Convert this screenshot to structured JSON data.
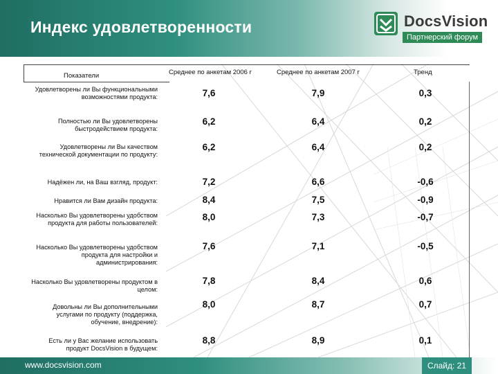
{
  "slide": {
    "title": "Индекс удовлетворенности",
    "logo": {
      "brand": "DocsVision",
      "subtitle": "Партнерский форум"
    },
    "footer": {
      "url": "www.docsvision.com",
      "slide_label": "Слайд: 21"
    }
  },
  "table": {
    "headers": {
      "indicators": "Показатели",
      "avg_2006": "Среднее по анкетам 2006 г",
      "avg_2007": "Среднее по анкетам 2007 г",
      "trend": "Тренд"
    },
    "rows": [
      {
        "label": "Удовлетворены ли Вы функциональными возможностями продукта:",
        "avg_2006": "7,6",
        "avg_2007": "7,9",
        "trend": "0,3"
      },
      {
        "label": "Полностью ли Вы удовлетворены быстродействием продукта:",
        "avg_2006": "6,2",
        "avg_2007": "6,4",
        "trend": "0,2"
      },
      {
        "label": "Удовлетворены ли Вы качеством технической документации по продукту:",
        "avg_2006": "6,2",
        "avg_2007": "6,4",
        "trend": "0,2"
      },
      {
        "label": "Надёжен ли, на Ваш взгляд, продукт:",
        "avg_2006": "7,2",
        "avg_2007": "6,6",
        "trend": "-0,6"
      },
      {
        "label": "Нравится ли Вам дизайн продукта:",
        "avg_2006": "8,4",
        "avg_2007": "7,5",
        "trend": "-0,9"
      },
      {
        "label": "Насколько Вы удовлетворены удобством продукта для работы пользователей:",
        "avg_2006": "8,0",
        "avg_2007": "7,3",
        "trend": "-0,7"
      },
      {
        "label": "Насколько Вы удовлетворены удобством продукта для настройки и администрирования:",
        "avg_2006": "7,6",
        "avg_2007": "7,1",
        "trend": "-0,5"
      },
      {
        "label": "Насколько Вы удовлетворены продуктом в целом:",
        "avg_2006": "7,8",
        "avg_2007": "8,4",
        "trend": "0,6"
      },
      {
        "label": "Довольны ли Вы дополнительными услугами по продукту (поддержка, обучение, внедрение):",
        "avg_2006": "8,0",
        "avg_2007": "8,7",
        "trend": "0,7"
      },
      {
        "label": "Есть ли у Вас желание использовать продукт DocsVision в будущем:",
        "avg_2006": "8,8",
        "avg_2007": "8,9",
        "trend": "0,1"
      }
    ]
  }
}
